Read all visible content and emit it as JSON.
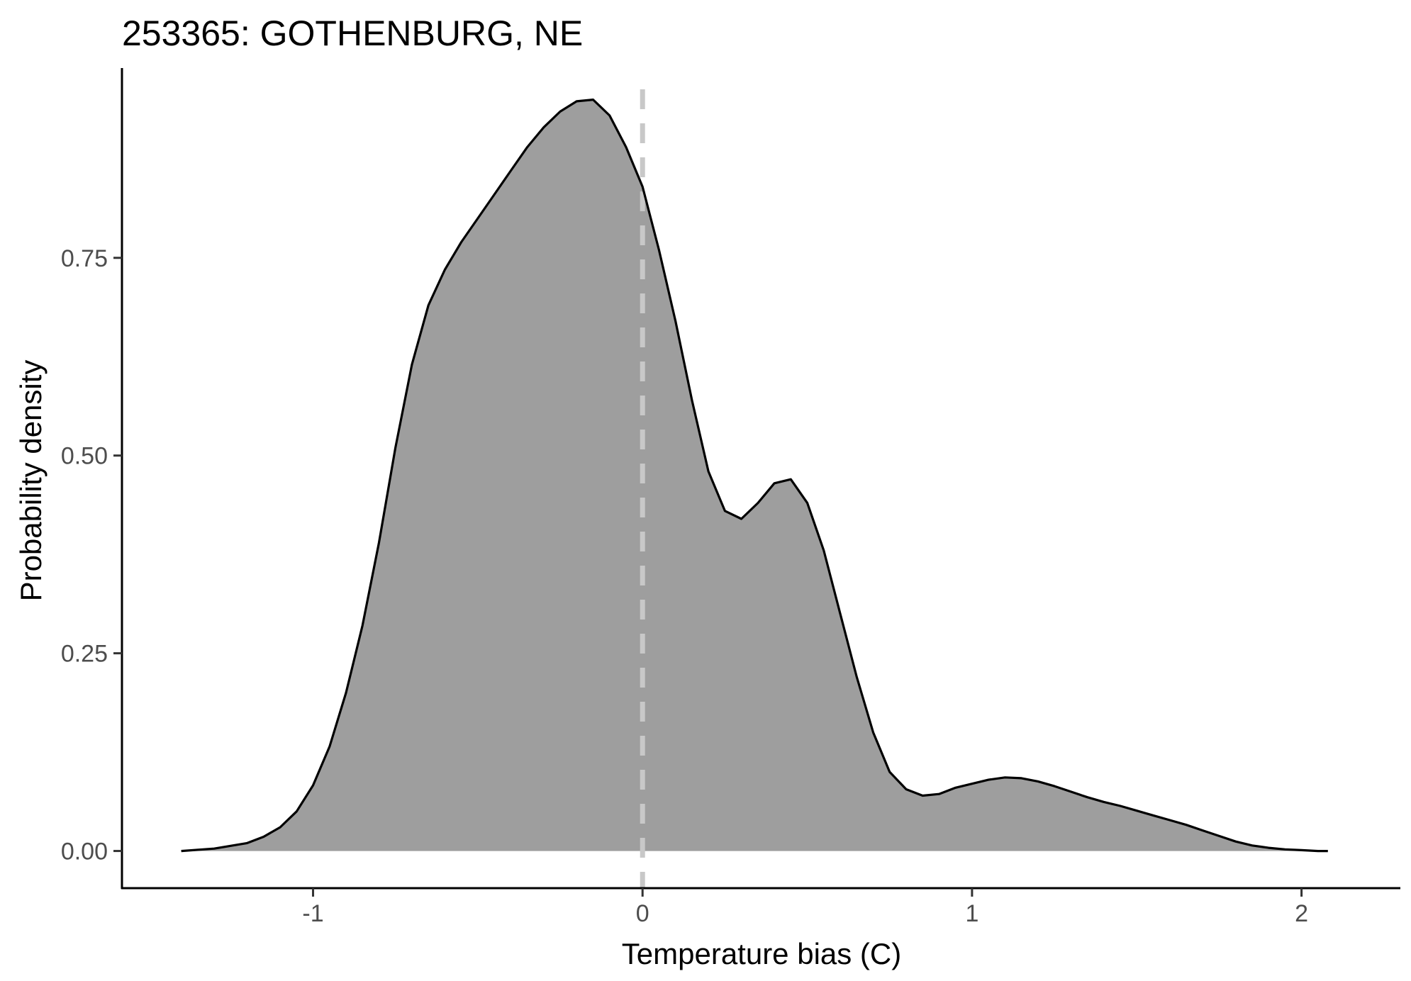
{
  "chart_data": {
    "type": "area",
    "title": "253365: GOTHENBURG, NE",
    "xlabel": "Temperature bias (C)",
    "ylabel": "Probability density",
    "xlim": [
      -1.58,
      2.3
    ],
    "ylim": [
      -0.047,
      0.99
    ],
    "x_ticks": [
      -1,
      0,
      1,
      2
    ],
    "x_tick_labels": [
      "-1",
      "0",
      "1",
      "2"
    ],
    "y_ticks": [
      0,
      0.25,
      0.5,
      0.75
    ],
    "y_tick_labels": [
      "0.00",
      "0.25",
      "0.50",
      "0.75"
    ],
    "grid": false,
    "reference_line": {
      "x": 0,
      "style": "dashed",
      "color": "#c8c8c8"
    },
    "fill_color": "#9e9e9e",
    "line_color": "#000000",
    "series": [
      {
        "x": [
          -1.4,
          -1.3,
          -1.2,
          -1.15,
          -1.1,
          -1.05,
          -1.0,
          -0.95,
          -0.9,
          -0.85,
          -0.8,
          -0.75,
          -0.7,
          -0.65,
          -0.6,
          -0.55,
          -0.5,
          -0.45,
          -0.4,
          -0.35,
          -0.3,
          -0.25,
          -0.2,
          -0.15,
          -0.1,
          -0.05,
          0.0,
          0.05,
          0.1,
          0.15,
          0.2,
          0.25,
          0.3,
          0.35,
          0.4,
          0.45,
          0.5,
          0.55,
          0.6,
          0.65,
          0.7,
          0.75,
          0.8,
          0.85,
          0.9,
          0.95,
          1.0,
          1.05,
          1.1,
          1.15,
          1.2,
          1.25,
          1.3,
          1.35,
          1.4,
          1.45,
          1.5,
          1.55,
          1.6,
          1.65,
          1.7,
          1.75,
          1.8,
          1.85,
          1.9,
          1.95,
          2.0,
          2.05,
          2.08
        ],
        "y": [
          0.0,
          0.003,
          0.01,
          0.018,
          0.03,
          0.05,
          0.083,
          0.132,
          0.2,
          0.285,
          0.39,
          0.51,
          0.615,
          0.69,
          0.735,
          0.77,
          0.8,
          0.83,
          0.86,
          0.89,
          0.915,
          0.935,
          0.948,
          0.95,
          0.93,
          0.89,
          0.84,
          0.76,
          0.67,
          0.57,
          0.48,
          0.43,
          0.42,
          0.44,
          0.465,
          0.47,
          0.44,
          0.38,
          0.3,
          0.22,
          0.15,
          0.1,
          0.078,
          0.07,
          0.072,
          0.08,
          0.085,
          0.09,
          0.093,
          0.092,
          0.088,
          0.082,
          0.075,
          0.068,
          0.062,
          0.057,
          0.051,
          0.045,
          0.039,
          0.033,
          0.026,
          0.019,
          0.012,
          0.007,
          0.004,
          0.002,
          0.001,
          0.0,
          0.0
        ]
      }
    ]
  }
}
